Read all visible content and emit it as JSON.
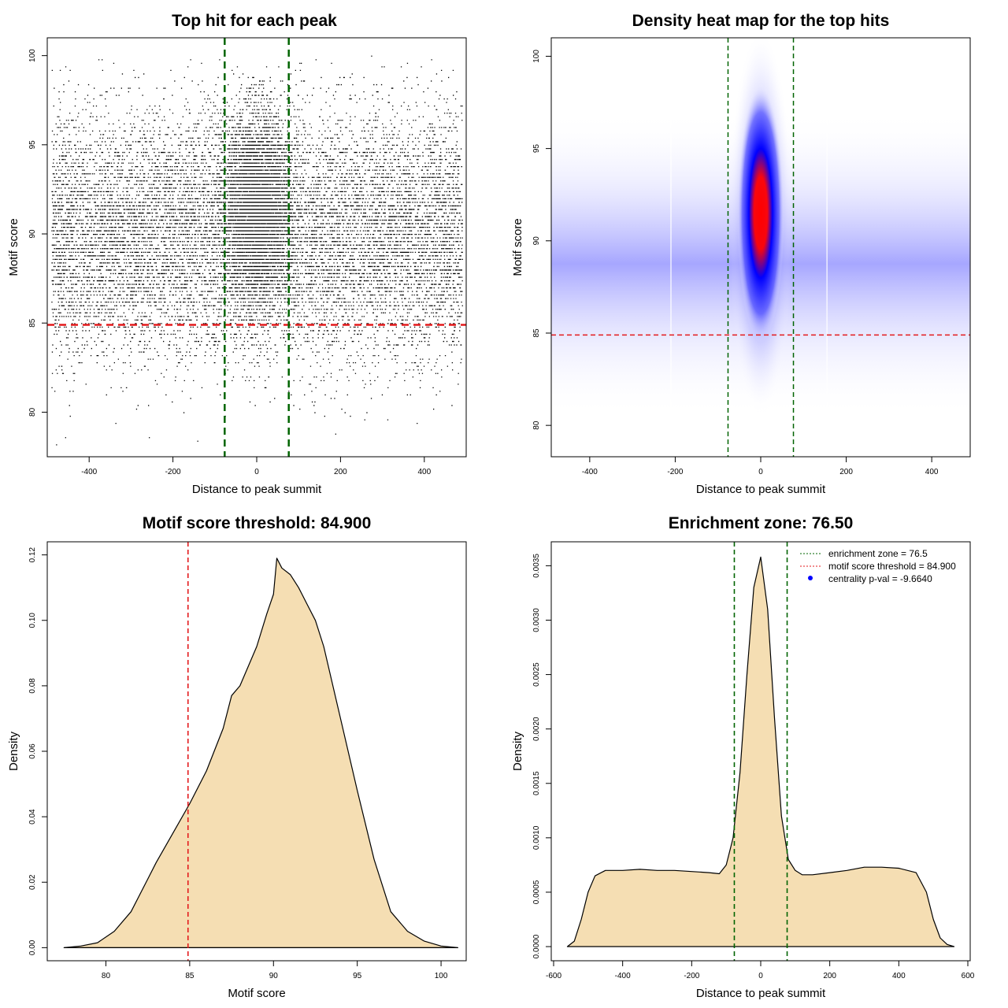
{
  "chart_data": [
    {
      "type": "scatter",
      "title": "Top hit for each peak",
      "xlabel": "Distance to peak summit",
      "ylabel": "Motif score",
      "xlim": [
        -500,
        500
      ],
      "ylim": [
        77.5,
        101
      ],
      "xticks": [
        -400,
        -200,
        0,
        200,
        400
      ],
      "yticks": [
        80,
        85,
        90,
        95,
        100
      ],
      "threshold": 84.9,
      "enrichment_zone": [
        -76.5,
        76.5
      ],
      "points_description": "dense cloud of ~30000 top hits; uniform background across x in [-490, 490] with score ~N(90,3.5), plus central enrichment at x≈0 with score ~N(91.5,2.5)",
      "colors": {
        "points": "#000000",
        "threshold": "#e31a1c",
        "zone": "#006400"
      }
    },
    {
      "type": "heatmap",
      "title": "Density heat map for the top hits",
      "xlabel": "Distance to peak summit",
      "ylabel": "Motif score",
      "xlim": [
        -490,
        490
      ],
      "ylim": [
        78.3,
        101
      ],
      "xticks": [
        -400,
        -200,
        0,
        200,
        400
      ],
      "yticks": [
        80,
        85,
        90,
        95,
        100
      ],
      "threshold": 84.9,
      "enrichment_zone": [
        -76.5,
        76.5
      ],
      "density_peak": {
        "x": 0,
        "y": 91.5
      },
      "colors": {
        "low": "#ffffff",
        "mid": "#0000ff",
        "high": "#ff0000",
        "threshold": "#e31a1c",
        "zone": "#006400"
      }
    },
    {
      "type": "area",
      "title": "Motif score threshold: 84.900",
      "xlabel": "Motif score",
      "ylabel": "Density",
      "xlim": [
        76.5,
        101.5
      ],
      "ylim": [
        -0.004,
        0.124
      ],
      "xticks": [
        80,
        85,
        90,
        95,
        100
      ],
      "yticks": [
        0.0,
        0.02,
        0.04,
        0.06,
        0.08,
        0.1,
        0.12
      ],
      "ytick_labels": [
        "0.00",
        "0.02",
        "0.04",
        "0.06",
        "0.08",
        "0.10",
        "0.12"
      ],
      "threshold": 84.9,
      "x": [
        77.5,
        78.5,
        79.5,
        80.5,
        81.5,
        82.5,
        83.0,
        84.0,
        85.0,
        86.0,
        87.0,
        87.5,
        88.0,
        89.0,
        89.6,
        90.0,
        90.2,
        90.5,
        91.0,
        91.5,
        92.0,
        92.5,
        93.0,
        94.0,
        95.0,
        96.0,
        97.0,
        98.0,
        99.0,
        100.0,
        101.0
      ],
      "y": [
        0.0,
        0.0005,
        0.0015,
        0.005,
        0.011,
        0.021,
        0.026,
        0.035,
        0.044,
        0.054,
        0.067,
        0.077,
        0.08,
        0.092,
        0.102,
        0.108,
        0.119,
        0.116,
        0.114,
        0.11,
        0.105,
        0.1,
        0.092,
        0.07,
        0.048,
        0.027,
        0.011,
        0.005,
        0.002,
        0.0005,
        0.0
      ],
      "colors": {
        "fill": "#f5deb3",
        "line": "#000000",
        "threshold": "#e31a1c"
      }
    },
    {
      "type": "area",
      "title": "Enrichment zone: 76.50",
      "xlabel": "Distance to peak summit",
      "ylabel": "Density",
      "xlim": [
        -600,
        600
      ],
      "ylim": [
        -0.00013,
        0.00372
      ],
      "xticks": [
        -600,
        -400,
        -200,
        0,
        200,
        400,
        600
      ],
      "yticks": [
        0.0,
        0.0005,
        0.001,
        0.0015,
        0.002,
        0.0025,
        0.003,
        0.0035
      ],
      "ytick_labels": [
        "0.0000",
        "0.0005",
        "0.0010",
        "0.0015",
        "0.0020",
        "0.0025",
        "0.0030",
        "0.0035"
      ],
      "enrichment_zone": [
        -76.5,
        76.5
      ],
      "x": [
        -560,
        -540,
        -520,
        -500,
        -480,
        -450,
        -400,
        -350,
        -300,
        -250,
        -200,
        -150,
        -120,
        -100,
        -80,
        -60,
        -40,
        -20,
        0,
        20,
        40,
        60,
        80,
        100,
        120,
        150,
        200,
        250,
        300,
        350,
        400,
        450,
        480,
        500,
        520,
        540,
        560
      ],
      "y": [
        0.0,
        5e-05,
        0.00025,
        0.0005,
        0.00065,
        0.0007,
        0.0007,
        0.00071,
        0.0007,
        0.0007,
        0.00069,
        0.00068,
        0.00067,
        0.00075,
        0.001,
        0.0016,
        0.0025,
        0.0033,
        0.00358,
        0.0031,
        0.0021,
        0.0012,
        0.0008,
        0.0007,
        0.00066,
        0.00066,
        0.00068,
        0.0007,
        0.00073,
        0.00073,
        0.00072,
        0.00068,
        0.0005,
        0.00025,
        8e-05,
        2e-05,
        0.0
      ],
      "legend": [
        {
          "label": "enrichment zone = 76.5",
          "style": "dotted",
          "color": "#006400"
        },
        {
          "label": "motif score threshold = 84.900",
          "style": "dotted",
          "color": "#e31a1c"
        },
        {
          "label": "centrality p-val = -9.6640",
          "style": "point",
          "color": "#0000ff"
        }
      ],
      "legend_position": "top-right",
      "colors": {
        "fill": "#f5deb3",
        "line": "#000000",
        "zone": "#006400"
      }
    }
  ]
}
